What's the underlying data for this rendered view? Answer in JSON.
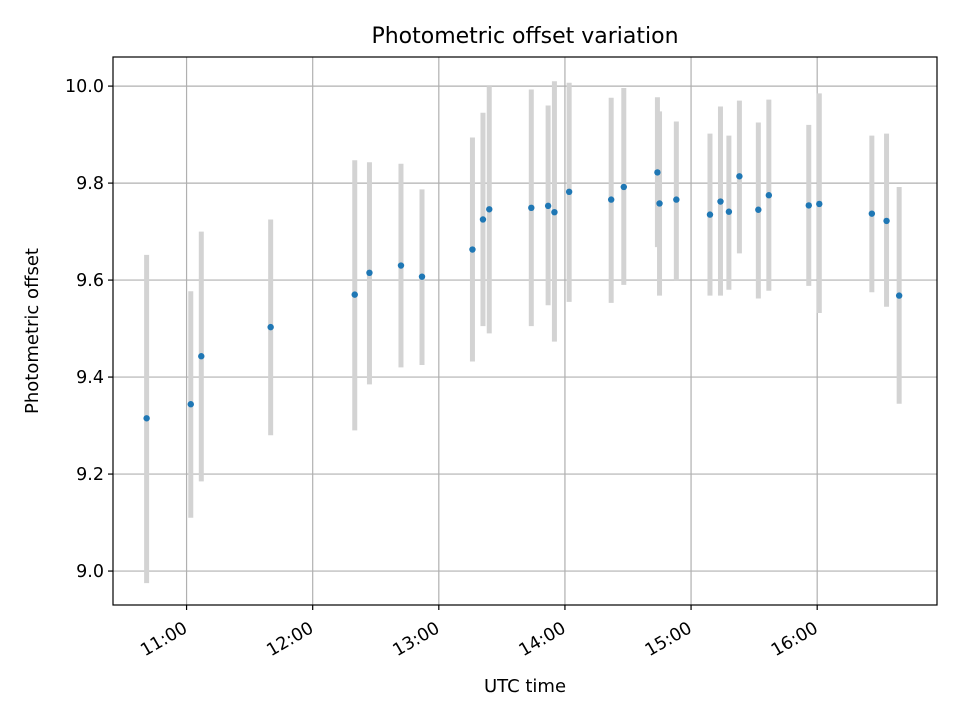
{
  "chart_data": {
    "type": "scatter",
    "title": "Photometric offset variation",
    "xlabel": "UTC time",
    "ylabel": "Photometric offset",
    "xlim": [
      "10:25",
      "16:57"
    ],
    "ylim": [
      8.93,
      10.06
    ],
    "x_ticks": [
      "11:00",
      "12:00",
      "13:00",
      "14:00",
      "15:00",
      "16:00"
    ],
    "y_ticks": [
      "9.0",
      "9.2",
      "9.4",
      "9.6",
      "9.8",
      "10.0"
    ],
    "grid": true,
    "point_color": "#1f77b4",
    "errorbar_color": "#d3d3d3",
    "points": [
      {
        "x": "10:41",
        "y": 9.315,
        "low": 8.975,
        "high": 9.652
      },
      {
        "x": "11:02",
        "y": 9.344,
        "low": 9.11,
        "high": 9.577
      },
      {
        "x": "11:07",
        "y": 9.443,
        "low": 9.185,
        "high": 9.7
      },
      {
        "x": "11:40",
        "y": 9.503,
        "low": 9.28,
        "high": 9.725
      },
      {
        "x": "12:20",
        "y": 9.57,
        "low": 9.29,
        "high": 9.847
      },
      {
        "x": "12:27",
        "y": 9.615,
        "low": 9.385,
        "high": 9.843
      },
      {
        "x": "12:42",
        "y": 9.63,
        "low": 9.42,
        "high": 9.84
      },
      {
        "x": "12:52",
        "y": 9.607,
        "low": 9.425,
        "high": 9.787
      },
      {
        "x": "13:16",
        "y": 9.663,
        "low": 9.432,
        "high": 9.894
      },
      {
        "x": "13:21",
        "y": 9.725,
        "low": 9.505,
        "high": 9.945
      },
      {
        "x": "13:24",
        "y": 9.746,
        "low": 9.49,
        "high": 10.0
      },
      {
        "x": "13:44",
        "y": 9.749,
        "low": 9.505,
        "high": 9.993
      },
      {
        "x": "13:52",
        "y": 9.753,
        "low": 9.548,
        "high": 9.96
      },
      {
        "x": "13:55",
        "y": 9.74,
        "low": 9.473,
        "high": 10.01
      },
      {
        "x": "14:02",
        "y": 9.782,
        "low": 9.555,
        "high": 10.007
      },
      {
        "x": "14:22",
        "y": 9.766,
        "low": 9.553,
        "high": 9.976
      },
      {
        "x": "14:28",
        "y": 9.792,
        "low": 9.59,
        "high": 9.996
      },
      {
        "x": "14:44",
        "y": 9.822,
        "low": 9.668,
        "high": 9.977
      },
      {
        "x": "14:45",
        "y": 9.758,
        "low": 9.568,
        "high": 9.948
      },
      {
        "x": "14:53",
        "y": 9.766,
        "low": 9.6,
        "high": 9.927
      },
      {
        "x": "15:09",
        "y": 9.735,
        "low": 9.568,
        "high": 9.902
      },
      {
        "x": "15:14",
        "y": 9.762,
        "low": 9.568,
        "high": 9.958
      },
      {
        "x": "15:18",
        "y": 9.741,
        "low": 9.58,
        "high": 9.898
      },
      {
        "x": "15:23",
        "y": 9.814,
        "low": 9.655,
        "high": 9.97
      },
      {
        "x": "15:32",
        "y": 9.745,
        "low": 9.562,
        "high": 9.925
      },
      {
        "x": "15:37",
        "y": 9.775,
        "low": 9.578,
        "high": 9.972
      },
      {
        "x": "15:56",
        "y": 9.754,
        "low": 9.588,
        "high": 9.92
      },
      {
        "x": "16:01",
        "y": 9.757,
        "low": 9.532,
        "high": 9.985
      },
      {
        "x": "16:26",
        "y": 9.737,
        "low": 9.575,
        "high": 9.898
      },
      {
        "x": "16:33",
        "y": 9.722,
        "low": 9.545,
        "high": 9.902
      },
      {
        "x": "16:39",
        "y": 9.568,
        "low": 9.345,
        "high": 9.792
      }
    ]
  }
}
